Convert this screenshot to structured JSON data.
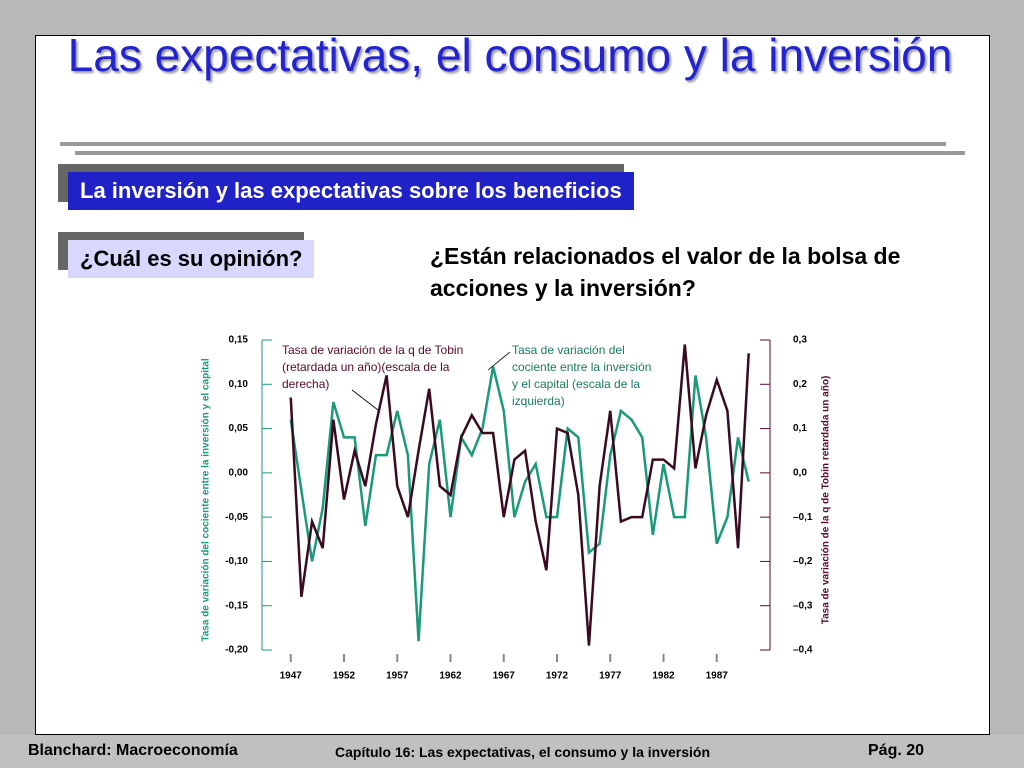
{
  "slide": {
    "title": "Las expectativas, el consumo y la inversión",
    "subtitle": "La inversión y las expectativas sobre los beneficios",
    "prompt": "¿Cuál es su opinión?",
    "question": "¿Están relacionados el valor de la bolsa de acciones y la inversión?",
    "footer_left": "Blanchard: Macroeconomía",
    "footer_center": "Capítulo 16: Las expectativas, el consumo y la inversión",
    "footer_right": "Pág. 20"
  },
  "chart_data": {
    "type": "line",
    "ylabel": "Tasa de variación del cociente entre la inversión y el capital",
    "y2label": "Tasa de variación de la q de Tobin retardada un año)",
    "annotations": [
      "Tasa de variación de la q de Tobin (retardada un año)(escala de la derecha)",
      "Tasa de variación del cociente entre la inversión y el capital (escala de la izquierda)"
    ],
    "x": [
      1947,
      1948,
      1949,
      1950,
      1951,
      1952,
      1953,
      1954,
      1955,
      1956,
      1957,
      1958,
      1959,
      1960,
      1961,
      1962,
      1963,
      1964,
      1965,
      1966,
      1967,
      1968,
      1969,
      1970,
      1971,
      1972,
      1973,
      1974,
      1975,
      1976,
      1977,
      1978,
      1979,
      1980,
      1981,
      1982,
      1983,
      1984,
      1985,
      1986,
      1987,
      1988,
      1989,
      1990
    ],
    "xlim": [
      1944.3,
      1992
    ],
    "xticks": [
      1947,
      1952,
      1957,
      1962,
      1967,
      1972,
      1977,
      1982,
      1987
    ],
    "ylim": [
      -0.2,
      0.15
    ],
    "yticks": [
      {
        "value": 0.15,
        "label": "0,15"
      },
      {
        "value": 0.1,
        "label": "0,10"
      },
      {
        "value": 0.05,
        "label": "0,05"
      },
      {
        "value": 0,
        "label": "0,00"
      },
      {
        "value": -0.05,
        "label": "-0,05"
      },
      {
        "value": -0.1,
        "label": "-0,10"
      },
      {
        "value": -0.15,
        "label": "-0,15"
      },
      {
        "value": -0.2,
        "label": "-0,20"
      }
    ],
    "y2lim": [
      -0.4,
      0.3
    ],
    "y2ticks": [
      {
        "value": 0.3,
        "label": "0,3"
      },
      {
        "value": 0.2,
        "label": "0,2"
      },
      {
        "value": 0.1,
        "label": "0,1"
      },
      {
        "value": 0,
        "label": "0,0"
      },
      {
        "value": -0.1,
        "label": "–0,1"
      },
      {
        "value": -0.2,
        "label": "–0,2"
      },
      {
        "value": -0.3,
        "label": "–0,3"
      },
      {
        "value": -0.4,
        "label": "–0,4"
      }
    ],
    "series": [
      {
        "name": "Tasa de variación del cociente entre la inversión y el capital",
        "color": "#1b9a78",
        "values": [
          0.06,
          -0.02,
          -0.1,
          -0.04,
          0.08,
          0.04,
          0.04,
          -0.06,
          0.02,
          0.02,
          0.07,
          0.02,
          -0.19,
          0.01,
          0.06,
          -0.05,
          0.04,
          0.02,
          0.05,
          0.12,
          0.07,
          -0.05,
          -0.01,
          0.01,
          -0.05,
          -0.05,
          0.05,
          0.04,
          -0.09,
          -0.08,
          0.02,
          0.07,
          0.06,
          0.04,
          -0.07,
          0.01,
          -0.05,
          -0.05,
          0.11,
          0.04,
          -0.08,
          -0.05,
          0.04,
          -0.01
        ]
      },
      {
        "name": "Tasa de variación de la q de Tobin",
        "color": "#3a0a1e",
        "axis": "y2",
        "values": [
          0.17,
          -0.28,
          -0.11,
          -0.17,
          0.12,
          -0.06,
          0.05,
          -0.03,
          0.11,
          0.22,
          -0.03,
          -0.1,
          0.05,
          0.19,
          -0.03,
          -0.05,
          0.08,
          0.13,
          0.09,
          0.09,
          -0.1,
          0.03,
          0.05,
          -0.11,
          -0.22,
          0.1,
          0.09,
          -0.05,
          -0.39,
          -0.03,
          0.14,
          -0.11,
          -0.1,
          -0.1,
          0.03,
          0.03,
          0.01,
          0.29,
          0.01,
          0.13,
          0.21,
          0.14,
          -0.17,
          0.27
        ]
      }
    ]
  }
}
